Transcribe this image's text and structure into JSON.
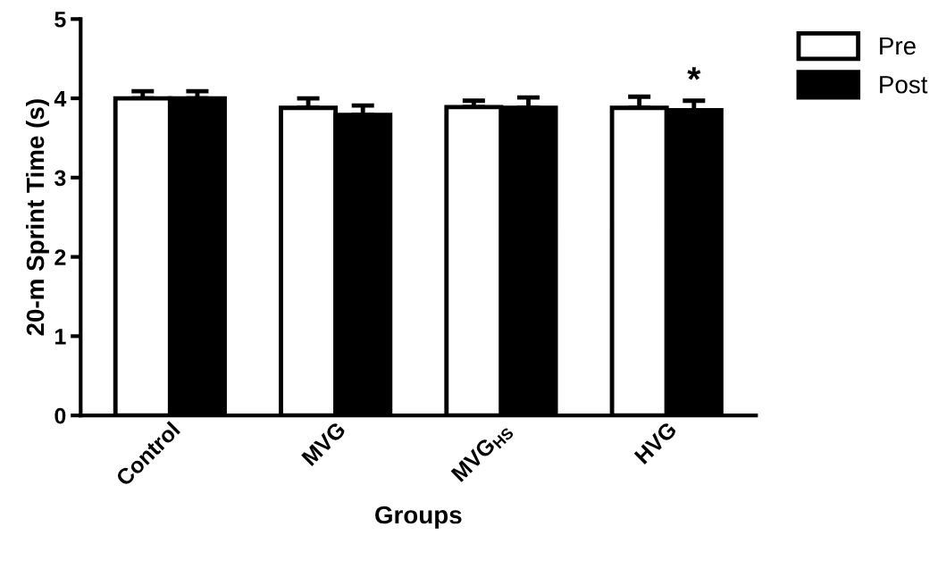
{
  "chart_data": {
    "type": "bar",
    "xlabel": "Groups",
    "ylabel": "20-m Sprint Time (s)",
    "categories": [
      "Control",
      "MVG",
      "MVG$_{HS}$",
      "HVG"
    ],
    "series": [
      {
        "name": "Pre",
        "color": "#ffffff",
        "values": [
          4.0,
          3.88,
          3.89,
          3.88
        ],
        "errors": [
          0.09,
          0.12,
          0.08,
          0.14
        ]
      },
      {
        "name": "Post",
        "color": "#000000",
        "values": [
          4.0,
          3.79,
          3.88,
          3.85
        ],
        "errors": [
          0.09,
          0.12,
          0.13,
          0.12
        ]
      }
    ],
    "ylim": [
      0,
      5
    ],
    "yticks": [
      0,
      1,
      2,
      3,
      4,
      5
    ],
    "grid": false,
    "legend": "top right",
    "annotations": [
      "*"
    ]
  }
}
